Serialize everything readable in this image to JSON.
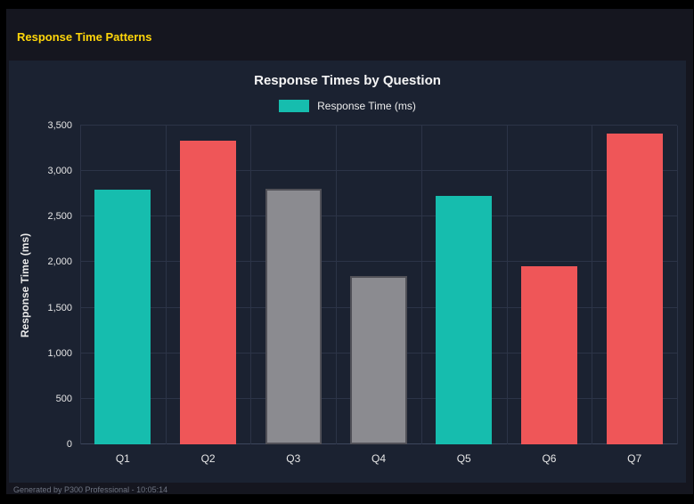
{
  "page": {
    "header_title": "Response Time Patterns",
    "footer_text": "Generated by P300 Professional - 10:05:14"
  },
  "colors": {
    "teal": "#16bdae",
    "red": "#ef5658",
    "gray": "#8b8b90",
    "gray_border": "#515158",
    "page_background": "#15161f",
    "panel_background": "#1b2231",
    "header_title_color": "#ffd60a",
    "gridline": "#2c3447"
  },
  "chart_data": {
    "type": "bar",
    "title": "Response Times by Question",
    "legend": [
      {
        "label": "Response Time (ms)",
        "color": "#16bdae"
      }
    ],
    "legend_position": "top",
    "categories": [
      "Q1",
      "Q2",
      "Q3",
      "Q4",
      "Q5",
      "Q6",
      "Q7"
    ],
    "values": [
      2800,
      3330,
      2810,
      1850,
      2730,
      1960,
      3410
    ],
    "bar_colors": [
      "#16bdae",
      "#ef5658",
      "#8b8b90",
      "#8b8b90",
      "#16bdae",
      "#ef5658",
      "#ef5658"
    ],
    "bar_borders": [
      null,
      null,
      "#515158",
      "#515158",
      null,
      null,
      null
    ],
    "xlabel": "",
    "ylabel": "Response Time (ms)",
    "ylim": [
      0,
      3500
    ],
    "ytick_step": 500,
    "yticks": [
      "0",
      "500",
      "1,000",
      "1,500",
      "2,000",
      "2,500",
      "3,000",
      "3,500"
    ],
    "grid": true
  }
}
